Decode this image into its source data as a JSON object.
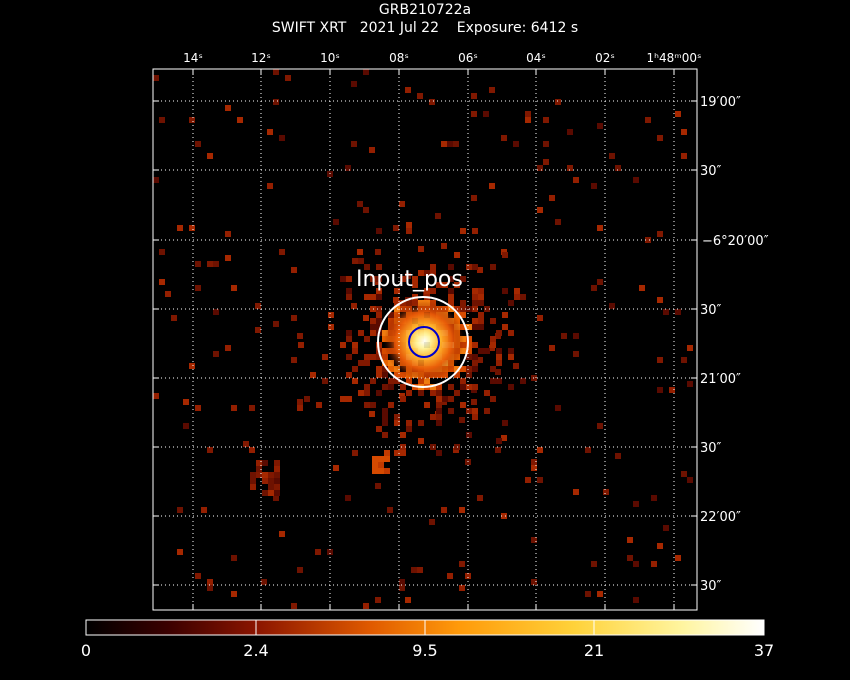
{
  "header": {
    "target_name": "GRB210722a",
    "instrument": "SWIFT XRT",
    "date": "2021 Jul 22",
    "exposure": "Exposure: 6412 s"
  },
  "ra_ticks": [
    "14ˢ",
    "12ˢ",
    "10ˢ",
    "08ˢ",
    "06ˢ",
    "04ˢ",
    "02ˢ",
    "1ʰ48ᵐ00ˢ"
  ],
  "dec_ticks": [
    "19′00″",
    "30″",
    "−6°20′00″",
    "30″",
    "21′00″",
    "30″",
    "22′00″",
    "30″"
  ],
  "region": {
    "label": "Input_pos",
    "outer_circle_color": "#ffffff",
    "inner_circle_color": "#0000cc"
  },
  "colorbar": {
    "ticks": [
      "0",
      "2.4",
      "9.5",
      "21",
      "37"
    ],
    "colormap": "heat"
  }
}
